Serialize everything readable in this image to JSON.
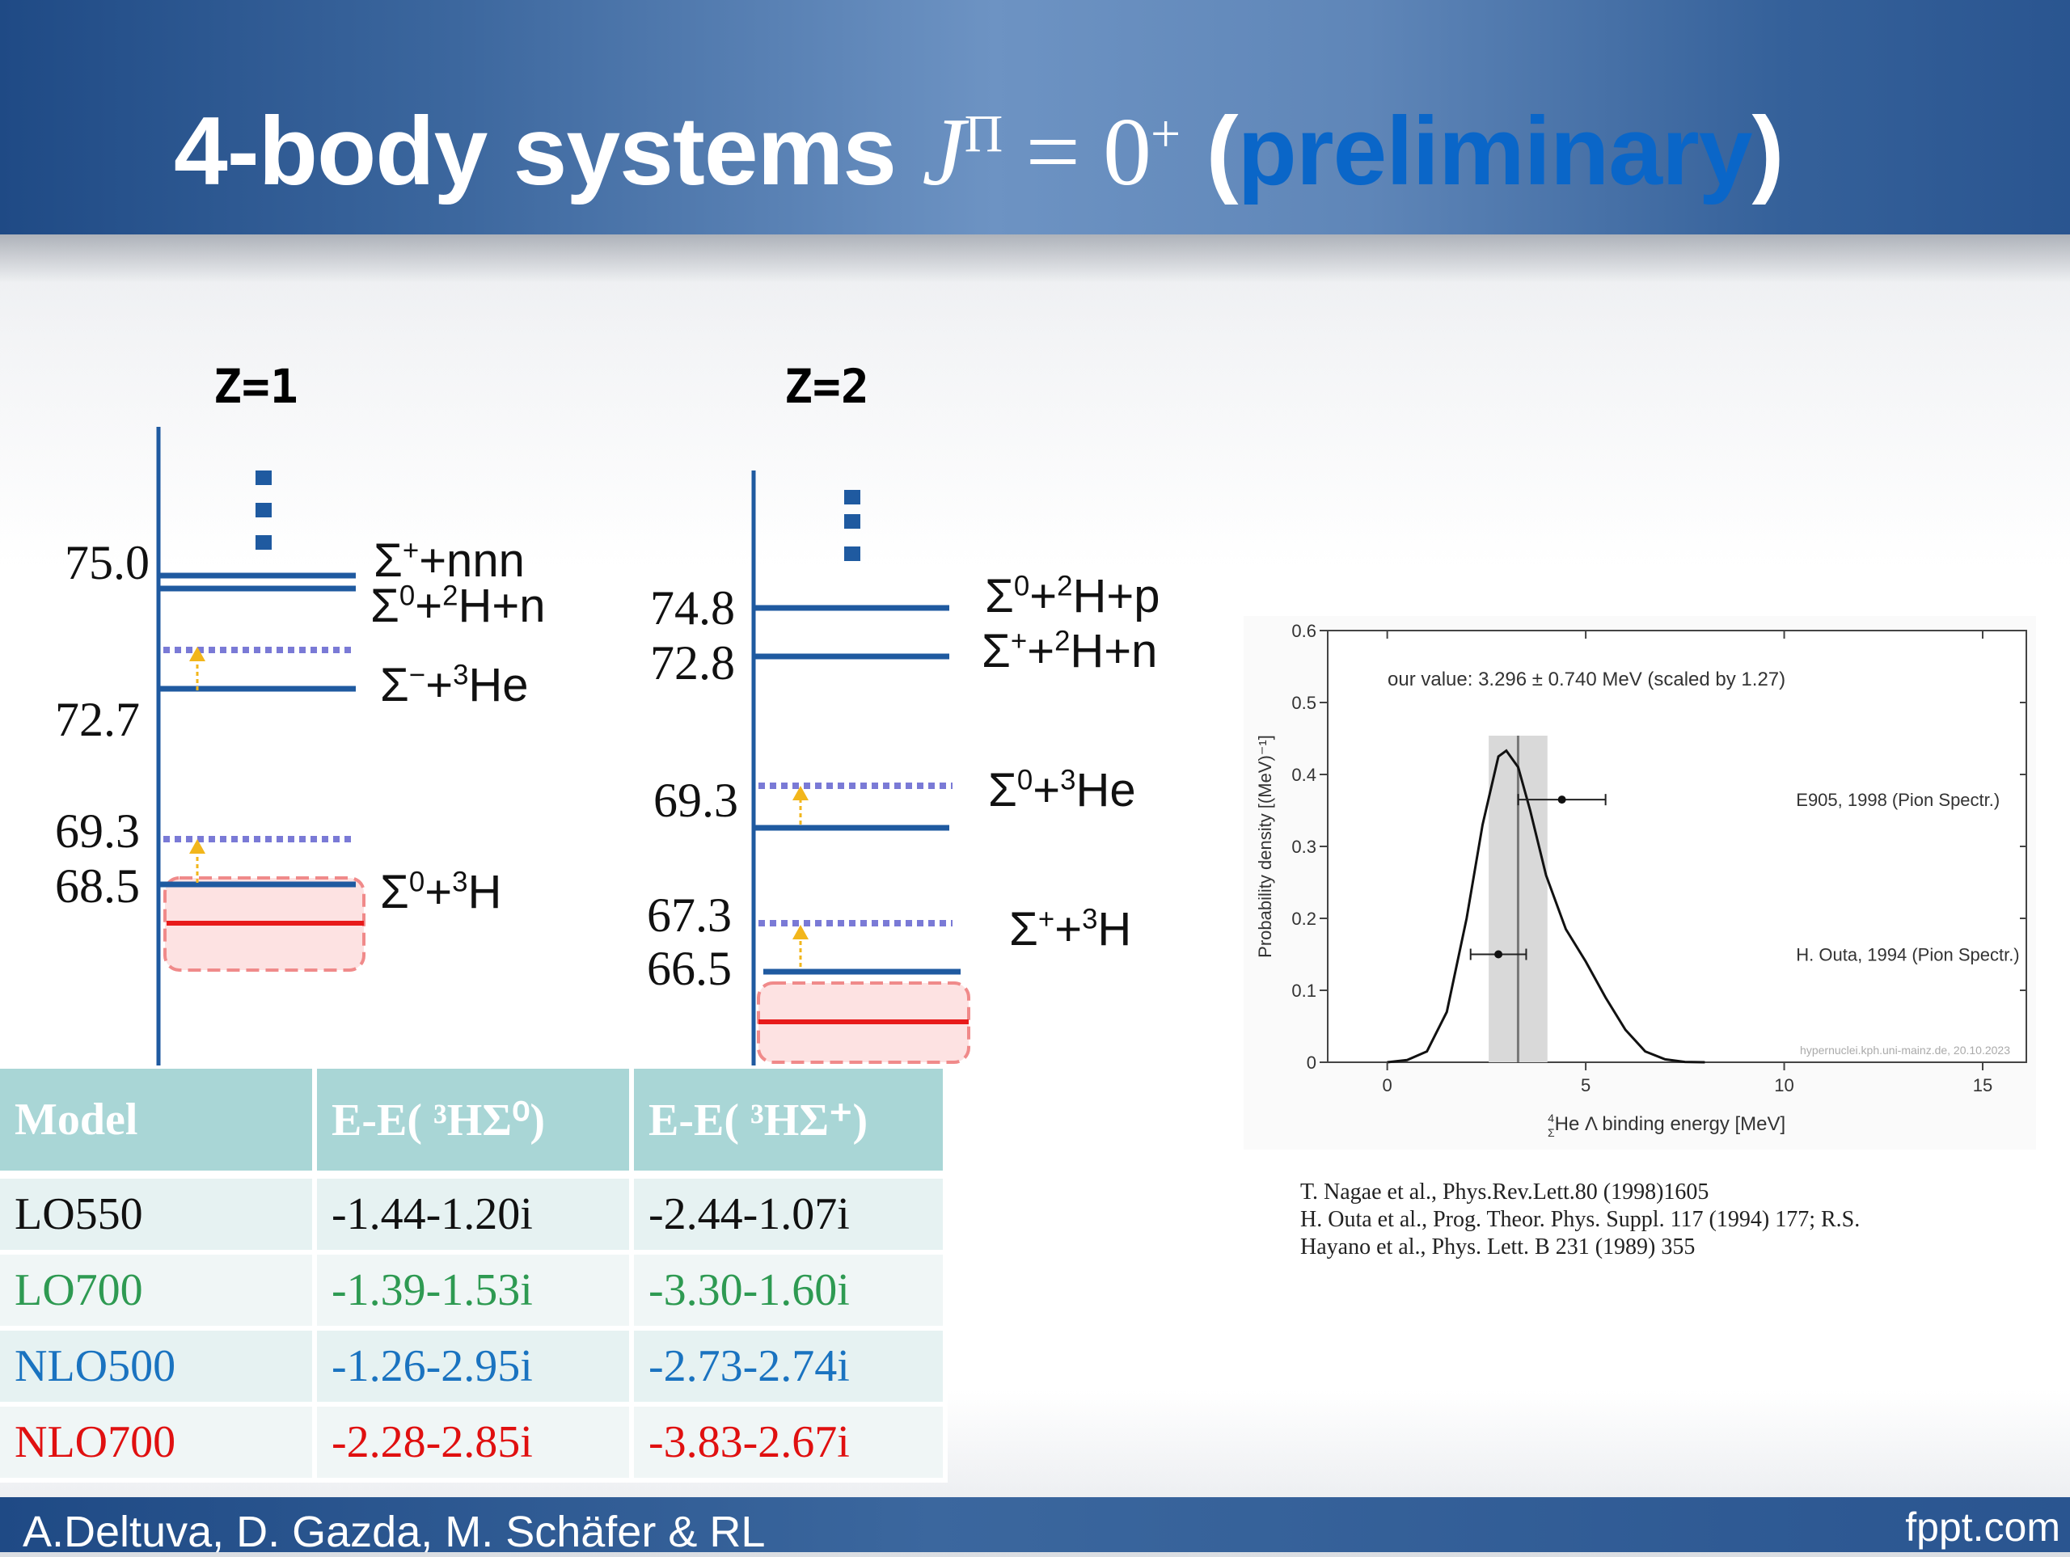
{
  "header": {
    "title_main": "4-body systems ",
    "title_math_J": "J",
    "title_math_sup": "Π",
    "title_math_eq": " = 0",
    "title_math_sup2": "+",
    "title_open": " (",
    "title_prelim": "preliminary",
    "title_close": ")"
  },
  "diagram_z1": {
    "label": "Z=1",
    "values": [
      "75.0",
      "72.7",
      "69.3",
      "68.5"
    ],
    "channels": [
      {
        "sym": "Σ",
        "sup": "+",
        "rest": "+nnn"
      },
      {
        "sym": "Σ",
        "sup": "0",
        "rest": "+",
        "sup2": "2",
        "rest2": "H+n"
      },
      {
        "sym": "Σ",
        "sup": "−",
        "rest": "+",
        "sup2": "3",
        "rest2": "He"
      },
      {
        "sym": "Σ",
        "sup": "0",
        "rest": "+",
        "sup2": "3",
        "rest2": "H"
      }
    ]
  },
  "diagram_z2": {
    "label": "Z=2",
    "values": [
      "74.8",
      "72.8",
      "69.3",
      "67.3",
      "66.5"
    ],
    "channels": [
      {
        "sym": "Σ",
        "sup": "0",
        "rest": "+",
        "sup2": "2",
        "rest2": "H+p"
      },
      {
        "sym": "Σ",
        "sup": "+",
        "rest": "+",
        "sup2": "2",
        "rest2": "H+n"
      },
      {
        "sym": "Σ",
        "sup": "0",
        "rest": "+",
        "sup2": "3",
        "rest2": "He"
      },
      {
        "sym": "Σ",
        "sup": "+",
        "rest": "+",
        "sup2": "3",
        "rest2": "H"
      }
    ]
  },
  "table": {
    "headers": [
      "Model",
      "E-E( ³HΣ⁰)",
      "E-E( ³HΣ⁺)"
    ],
    "rows": [
      {
        "model": "LO550",
        "c1": "-1.44-1.20i",
        "c2": "-2.44-1.07i",
        "color": "#111111"
      },
      {
        "model": "LO700",
        "c1": "-1.39-1.53i",
        "c2": "-3.30-1.60i",
        "color": "#2e9a52"
      },
      {
        "model": "NLO500",
        "c1": "-1.26-2.95i",
        "c2": "-2.73-2.74i",
        "color": "#1a73c0"
      },
      {
        "model": "NLO700",
        "c1": "-2.28-2.85i",
        "c2": "-3.83-2.67i",
        "color": "#e01010"
      }
    ]
  },
  "chart_data": {
    "type": "line",
    "title": "our value: 3.296 ± 0.740 MeV  (scaled by 1.27)",
    "xlabel": "He Λ binding energy [MeV]",
    "xlabel_iso_sup": "4",
    "xlabel_iso_sub": "Σ",
    "ylabel": "Probability density [(MeV)⁻¹]",
    "xlim": [
      -1.5,
      16.1
    ],
    "ylim": [
      0,
      0.6
    ],
    "xticks": [
      0,
      5,
      10,
      15
    ],
    "yticks": [
      0,
      0.1,
      0.2,
      0.3,
      0.4,
      0.5,
      0.6
    ],
    "ytick_labels": [
      "0",
      "0.1",
      "0.2",
      "0.3",
      "0.4",
      "0.5",
      "0.6"
    ],
    "series": [
      {
        "x": [
          0.0,
          0.5,
          1.0,
          1.5,
          2.0,
          2.4,
          2.8,
          3.0,
          3.3,
          3.6,
          4.0,
          4.5,
          5.0,
          5.5,
          6.0,
          6.5,
          7.0,
          7.5,
          8.0
        ],
        "values": [
          0.0,
          0.003,
          0.015,
          0.07,
          0.2,
          0.33,
          0.425,
          0.433,
          0.41,
          0.35,
          0.26,
          0.185,
          0.14,
          0.09,
          0.045,
          0.015,
          0.004,
          0.0005,
          0.0
        ]
      }
    ],
    "band": {
      "center": 3.296,
      "low": 2.556,
      "high": 4.036
    },
    "points": [
      {
        "label": "E905, 1998 (Pion Spectr.)",
        "x": 4.4,
        "xerr_low": 3.3,
        "xerr_high": 5.5,
        "y": 0.365
      },
      {
        "label": "H. Outa, 1994 (Pion Spectr.)",
        "x": 2.8,
        "xerr_low": 2.1,
        "xerr_high": 3.5,
        "y": 0.15
      }
    ],
    "watermark": "hypernuclei.kph.uni-mainz.de, 20.10.2023",
    "grid": false
  },
  "references": [
    "T. Nagae et al., Phys.Rev.Lett.80 (1998)1605",
    "H. Outa et al., Prog. Theor. Phys. Suppl. 117 (1994) 177; R.S.",
    "Hayano et al., Phys. Lett. B 231 (1989) 355"
  ],
  "footer": {
    "authors": "A.Deltuva, D. Gazda, M. Schäfer & RL",
    "brand": "fppt.com"
  }
}
